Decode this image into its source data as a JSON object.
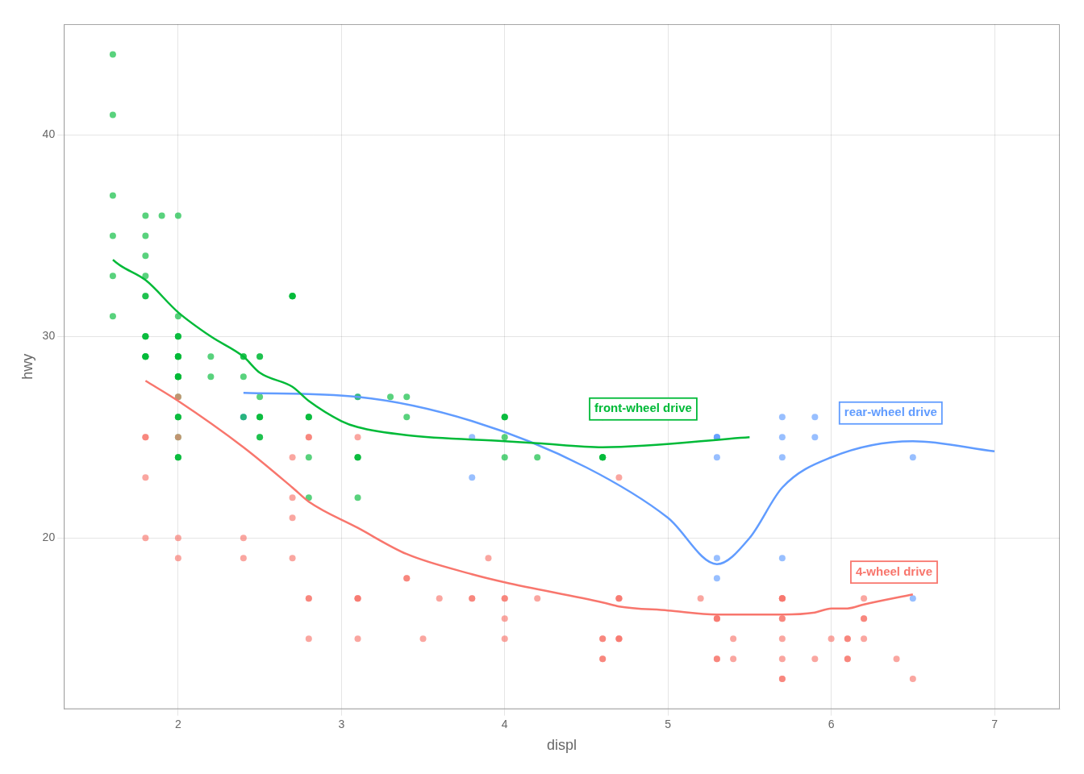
{
  "chart_data": {
    "type": "scatter",
    "xlabel": "displ",
    "ylabel": "hwy",
    "xlim": [
      1.3,
      7.4
    ],
    "ylim": [
      11.5,
      45.5
    ],
    "xticks": [
      2,
      3,
      4,
      5,
      6,
      7
    ],
    "yticks": [
      20,
      30,
      40
    ],
    "grid": true,
    "series": [
      {
        "type": "scatter",
        "color": "#F8766D",
        "x": [
          1.8,
          1.8,
          2.0,
          2.0,
          2.8,
          2.8,
          3.1,
          1.8,
          1.8,
          2.0,
          2.0,
          2.8,
          2.8,
          3.1,
          3.1,
          2.8,
          3.1,
          4.2,
          5.3,
          5.3,
          5.3,
          5.7,
          6.0,
          5.7,
          5.7,
          6.2,
          6.2,
          5.7,
          5.3,
          5.3,
          5.7,
          5.7,
          6.5,
          2.4,
          2.4,
          3.1,
          3.5,
          3.6,
          4.0,
          4.6,
          5.4,
          5.4,
          3.8,
          3.8,
          4.0,
          4.0,
          4.6,
          4.6,
          4.6,
          5.7,
          2.7,
          2.7,
          2.7,
          2.7,
          3.4,
          3.4,
          4.0,
          4.7,
          4.7,
          4.7,
          5.7,
          5.7,
          6.1,
          6.1,
          6.1,
          6.1,
          6.2,
          6.2,
          6.4,
          3.9,
          4.7,
          4.7,
          4.7,
          5.2,
          5.7,
          5.9,
          4.7
        ],
        "values": [
          25,
          25,
          27,
          25,
          25,
          25,
          25,
          23,
          20,
          20,
          19,
          17,
          17,
          17,
          15,
          15,
          17,
          17,
          16,
          16,
          16,
          16,
          15,
          17,
          17,
          17,
          16,
          15,
          14,
          14,
          14,
          13,
          13,
          20,
          19,
          17,
          15,
          17,
          17,
          15,
          15,
          14,
          17,
          17,
          16,
          15,
          15,
          14,
          14,
          13,
          24,
          22,
          21,
          19,
          18,
          18,
          17,
          15,
          15,
          15,
          17,
          16,
          15,
          14,
          14,
          15,
          16,
          15,
          14,
          19,
          17,
          17,
          17,
          17,
          17,
          14,
          23
        ]
      },
      {
        "type": "scatter",
        "color": "#00BA38",
        "x": [
          1.8,
          1.8,
          2.0,
          2.0,
          2.8,
          2.8,
          3.1,
          1.8,
          1.8,
          2.0,
          2.0,
          2.8,
          2.8,
          3.1,
          3.1,
          2.8,
          3.1,
          4.2,
          2.4,
          2.4,
          3.1,
          2.4,
          2.4,
          2.5,
          2.5,
          2.5,
          2.5,
          2.2,
          2.2,
          2.5,
          2.5,
          1.9,
          2.0,
          2.0,
          2.0,
          2.0,
          2.0,
          2.0,
          2.0,
          2.0,
          2.0,
          2.7,
          2.7,
          2.7,
          2.7,
          3.4,
          3.4,
          4.0,
          4.0,
          4.0,
          4.6,
          4.6,
          4.6,
          4.6,
          4.0,
          4.0,
          4.6,
          1.6,
          1.6,
          1.6,
          1.8,
          1.8,
          1.8,
          1.8,
          1.6,
          1.6,
          1.6,
          1.8,
          1.8,
          1.8,
          1.8,
          1.8,
          2.0,
          2.0,
          2.0,
          2.0,
          2.0,
          2.0,
          2.0,
          2.0,
          2.0,
          2.0,
          2.0,
          2.5,
          2.5,
          3.3
        ],
        "values": [
          29,
          29,
          31,
          30,
          26,
          26,
          27,
          30,
          29,
          26,
          24,
          26,
          24,
          24,
          22,
          22,
          24,
          24,
          29,
          26,
          24,
          28,
          29,
          29,
          29,
          27,
          26,
          29,
          28,
          26,
          26,
          36,
          36,
          29,
          26,
          29,
          28,
          27,
          24,
          24,
          29,
          32,
          32,
          32,
          32,
          27,
          26,
          26,
          24,
          26,
          24,
          24,
          24,
          24,
          25,
          26,
          26,
          44,
          41,
          37,
          36,
          35,
          34,
          32,
          35,
          33,
          31,
          30,
          32,
          33,
          29,
          30,
          29,
          28,
          28,
          30,
          30,
          29,
          25,
          28,
          28,
          28,
          26,
          25,
          25,
          27
        ]
      },
      {
        "type": "scatter",
        "color": "#619CFF",
        "x": [
          5.3,
          5.3,
          5.7,
          6.5,
          2.4,
          2.4,
          3.1,
          3.8,
          3.8,
          5.3,
          5.3,
          5.7,
          5.7,
          5.9,
          5.9,
          5.3,
          5.3,
          5.7,
          6.5
        ],
        "values": [
          25,
          24,
          25,
          24,
          26,
          26,
          27,
          25,
          23,
          25,
          25,
          26,
          24,
          26,
          25,
          19,
          18,
          19,
          17
        ]
      },
      {
        "type": "line",
        "color": "#00BA38",
        "x": [
          1.6,
          1.65,
          1.8,
          2.0,
          2.2,
          2.4,
          2.5,
          2.7,
          2.8,
          3.0,
          3.1,
          3.4,
          4.0,
          4.2,
          4.6,
          5.5
        ],
        "values": [
          33.8,
          33.5,
          32.8,
          31.2,
          30.0,
          29.0,
          28.2,
          27.5,
          26.8,
          25.8,
          25.5,
          25.1,
          24.8,
          24.7,
          24.5,
          25.0
        ]
      },
      {
        "type": "line",
        "color": "#619CFF",
        "x": [
          2.4,
          3.1,
          3.8,
          4.5,
          5.0,
          5.3,
          5.5,
          5.7,
          6.0,
          6.5,
          7.0
        ],
        "values": [
          27.2,
          27.0,
          25.8,
          23.5,
          21.0,
          18.7,
          20.0,
          22.5,
          24.0,
          24.8,
          24.3
        ]
      },
      {
        "type": "line",
        "color": "#F8766D",
        "x": [
          1.8,
          2.0,
          2.4,
          2.7,
          2.8,
          3.1,
          3.4,
          3.8,
          4.0,
          4.6,
          4.7,
          5.0,
          5.3,
          5.7,
          5.9,
          6.0,
          6.1,
          6.2,
          6.5
        ],
        "values": [
          27.8,
          26.8,
          24.5,
          22.5,
          21.8,
          20.5,
          19.2,
          18.2,
          17.8,
          16.8,
          16.6,
          16.4,
          16.2,
          16.2,
          16.3,
          16.5,
          16.5,
          16.7,
          17.2
        ]
      }
    ],
    "annotations": [
      {
        "text": "front-wheel drive",
        "x": 4.55,
        "y": 26.4,
        "color": "#00BA38"
      },
      {
        "text": "rear-wheel drive",
        "x": 6.08,
        "y": 26.2,
        "color": "#619CFF"
      },
      {
        "text": "4-wheel drive",
        "x": 6.15,
        "y": 18.3,
        "color": "#F8766D"
      }
    ]
  }
}
